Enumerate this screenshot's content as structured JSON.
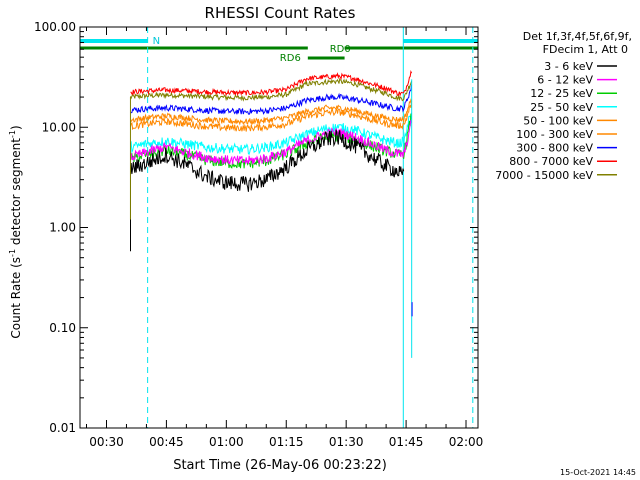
{
  "chart_data": {
    "type": "line",
    "title": "RHESSI Count Rates",
    "xlabel": "Start Time (26-May-06 00:23:22)",
    "ylabel_main": "Count Rate (s",
    "ylabel_sup": "-1",
    "ylabel_tail": " detector segment",
    "ylabel_sup2": "-1",
    "ylabel_close": ")",
    "yscale": "log",
    "ylim": [
      0.01,
      100
    ],
    "xlim_minutes": [
      23.37,
      123.0
    ],
    "x_ticks": [
      {
        "label": "00:30",
        "value": 30
      },
      {
        "label": "00:45",
        "value": 45
      },
      {
        "label": "01:00",
        "value": 60
      },
      {
        "label": "01:15",
        "value": 75
      },
      {
        "label": "01:30",
        "value": 90
      },
      {
        "label": "01:45",
        "value": 105
      },
      {
        "label": "02:00",
        "value": 120
      }
    ],
    "y_ticks": [
      {
        "label": "100.00",
        "value": 100
      },
      {
        "label": "10.00",
        "value": 10
      },
      {
        "label": "1.00",
        "value": 1
      },
      {
        "label": "0.10",
        "value": 0.1
      },
      {
        "label": "0.01",
        "value": 0.01
      }
    ],
    "legend_header": [
      "Det 1f,3f,4f,5f,6f,9f,",
      "FDecim 1, Att 0"
    ],
    "legend_position": "right",
    "series": [
      {
        "name": "3 - 6 keV",
        "color": "#000000",
        "profile": "p36"
      },
      {
        "name": "6 - 12 keV",
        "color": "#ff00ff",
        "profile": "p612"
      },
      {
        "name": "12 - 25 keV",
        "color": "#00cc00",
        "profile": "p1225"
      },
      {
        "name": "25 - 50 keV",
        "color": "#00ffff",
        "profile": "p2550"
      },
      {
        "name": "50 - 100 keV",
        "color": "#ff8800",
        "profile": "p50100"
      },
      {
        "name": "100 - 300 keV",
        "color": "#ff8800",
        "profile": "p100300"
      },
      {
        "name": "300 - 800 keV",
        "color": "#0000ff",
        "profile": "p300800"
      },
      {
        "name": "800 - 7000 keV",
        "color": "#ff0000",
        "profile": "p8007000"
      },
      {
        "name": "7000 - 15000 keV",
        "color": "#808000",
        "profile": "p700015000"
      }
    ],
    "profiles": {
      "p36": [
        [
          36.0,
          3.8
        ],
        [
          40,
          4.4
        ],
        [
          45,
          5.3
        ],
        [
          50,
          4.2
        ],
        [
          55,
          3.2
        ],
        [
          60,
          2.8
        ],
        [
          65,
          2.7
        ],
        [
          70,
          3.0
        ],
        [
          75,
          4.0
        ],
        [
          80,
          5.8
        ],
        [
          85,
          7.6
        ],
        [
          88,
          7.9
        ],
        [
          92,
          6.6
        ],
        [
          96,
          5.2
        ],
        [
          100,
          4.1
        ],
        [
          103,
          3.6
        ],
        [
          104.5,
          3.2
        ]
      ],
      "p612": [
        [
          36.0,
          5.0
        ],
        [
          40,
          5.6
        ],
        [
          45,
          6.4
        ],
        [
          50,
          5.6
        ],
        [
          55,
          5.0
        ],
        [
          60,
          4.7
        ],
        [
          65,
          4.6
        ],
        [
          70,
          4.9
        ],
        [
          75,
          5.7
        ],
        [
          80,
          7.3
        ],
        [
          85,
          8.6
        ],
        [
          88,
          8.9
        ],
        [
          92,
          8.1
        ],
        [
          96,
          6.9
        ],
        [
          100,
          5.9
        ],
        [
          103,
          5.4
        ],
        [
          104.5,
          5.3
        ],
        [
          106.5,
          12
        ]
      ],
      "p1225": [
        [
          36.0,
          4.8
        ],
        [
          40,
          5.3
        ],
        [
          45,
          5.9
        ],
        [
          50,
          5.3
        ],
        [
          55,
          4.7
        ],
        [
          60,
          4.4
        ],
        [
          65,
          4.3
        ],
        [
          70,
          4.6
        ],
        [
          75,
          5.4
        ],
        [
          80,
          6.9
        ],
        [
          85,
          8.0
        ],
        [
          88,
          8.2
        ],
        [
          92,
          7.6
        ],
        [
          96,
          6.6
        ],
        [
          100,
          5.8
        ],
        [
          103,
          5.3
        ],
        [
          104.5,
          5.5
        ],
        [
          106.5,
          14
        ]
      ],
      "p2550": [
        [
          36.0,
          6.3
        ],
        [
          40,
          6.8
        ],
        [
          45,
          7.3
        ],
        [
          50,
          6.8
        ],
        [
          55,
          6.3
        ],
        [
          60,
          6.1
        ],
        [
          65,
          6.0
        ],
        [
          70,
          6.3
        ],
        [
          75,
          7.0
        ],
        [
          80,
          8.5
        ],
        [
          85,
          9.7
        ],
        [
          88,
          10.0
        ],
        [
          92,
          9.4
        ],
        [
          96,
          8.3
        ],
        [
          100,
          7.4
        ],
        [
          103,
          6.9
        ],
        [
          104.5,
          7.2
        ],
        [
          106.5,
          16
        ]
      ],
      "p50100": [
        [
          36.0,
          10.2
        ],
        [
          40,
          10.8
        ],
        [
          45,
          11.4
        ],
        [
          50,
          10.8
        ],
        [
          55,
          10.2
        ],
        [
          60,
          9.9
        ],
        [
          65,
          9.8
        ],
        [
          70,
          10.1
        ],
        [
          75,
          10.8
        ],
        [
          80,
          12.8
        ],
        [
          85,
          14.0
        ],
        [
          88,
          14.2
        ],
        [
          92,
          13.4
        ],
        [
          96,
          12.0
        ],
        [
          100,
          10.9
        ],
        [
          103,
          10.4
        ],
        [
          104.5,
          10.6
        ],
        [
          106.5,
          18
        ]
      ],
      "p100300": [
        [
          36.0,
          11.8
        ],
        [
          40,
          12.4
        ],
        [
          45,
          13.0
        ],
        [
          50,
          12.4
        ],
        [
          55,
          11.8
        ],
        [
          60,
          11.5
        ],
        [
          65,
          11.4
        ],
        [
          70,
          11.7
        ],
        [
          75,
          12.4
        ],
        [
          80,
          14.3
        ],
        [
          85,
          15.5
        ],
        [
          88,
          15.6
        ],
        [
          92,
          14.8
        ],
        [
          96,
          13.4
        ],
        [
          100,
          12.4
        ],
        [
          103,
          11.9
        ],
        [
          104.5,
          12.1
        ],
        [
          106.5,
          20
        ]
      ],
      "p300800": [
        [
          36.0,
          14.8
        ],
        [
          40,
          15.3
        ],
        [
          45,
          15.6
        ],
        [
          50,
          15.2
        ],
        [
          55,
          14.7
        ],
        [
          60,
          14.4
        ],
        [
          65,
          14.3
        ],
        [
          70,
          14.6
        ],
        [
          75,
          15.5
        ],
        [
          80,
          18.5
        ],
        [
          85,
          19.8
        ],
        [
          88,
          20.0
        ],
        [
          92,
          19.0
        ],
        [
          96,
          17.6
        ],
        [
          100,
          16.2
        ],
        [
          103,
          15.3
        ],
        [
          104.5,
          15.6
        ],
        [
          106.5,
          26
        ]
      ],
      "p8007000": [
        [
          36.0,
          22.5
        ],
        [
          40,
          23.0
        ],
        [
          45,
          23.5
        ],
        [
          50,
          23.1
        ],
        [
          55,
          22.6
        ],
        [
          60,
          22.2
        ],
        [
          65,
          22.0
        ],
        [
          70,
          22.4
        ],
        [
          75,
          23.7
        ],
        [
          80,
          30.5
        ],
        [
          85,
          31.8
        ],
        [
          88,
          32.5
        ],
        [
          92,
          30.8
        ],
        [
          96,
          27.3
        ],
        [
          100,
          24.5
        ],
        [
          103,
          21.8
        ],
        [
          104.5,
          21.6
        ],
        [
          106.5,
          38
        ]
      ],
      "p700015000": [
        [
          36.0,
          20.0
        ],
        [
          40,
          20.6
        ],
        [
          45,
          21.0
        ],
        [
          50,
          20.6
        ],
        [
          55,
          20.2
        ],
        [
          60,
          19.8
        ],
        [
          65,
          19.7
        ],
        [
          70,
          20.0
        ],
        [
          75,
          21.2
        ],
        [
          80,
          27.0
        ],
        [
          85,
          28.3
        ],
        [
          88,
          28.8
        ],
        [
          92,
          27.3
        ],
        [
          96,
          24.2
        ],
        [
          100,
          21.8
        ],
        [
          103,
          19.5
        ],
        [
          104.5,
          19.5
        ],
        [
          106.5,
          30
        ]
      ]
    },
    "annotations": {
      "n_label": "N",
      "rd0_label": "RD0",
      "rd6_label": "RD6",
      "night_intervals_minutes": [
        [
          23.37,
          40.3
        ],
        [
          104.3,
          123.0
        ]
      ],
      "rd0_intervals_minutes": [
        [
          23.37,
          80.4
        ],
        [
          89.6,
          123.0
        ]
      ],
      "rd6_interval_minutes": [
        80.4,
        89.6
      ],
      "vertical_dashed_minutes": [
        40.3,
        121.7
      ],
      "vertical_solid_minutes": [
        104.3
      ]
    },
    "footer_date": "15-Oct-2021 14:45"
  }
}
